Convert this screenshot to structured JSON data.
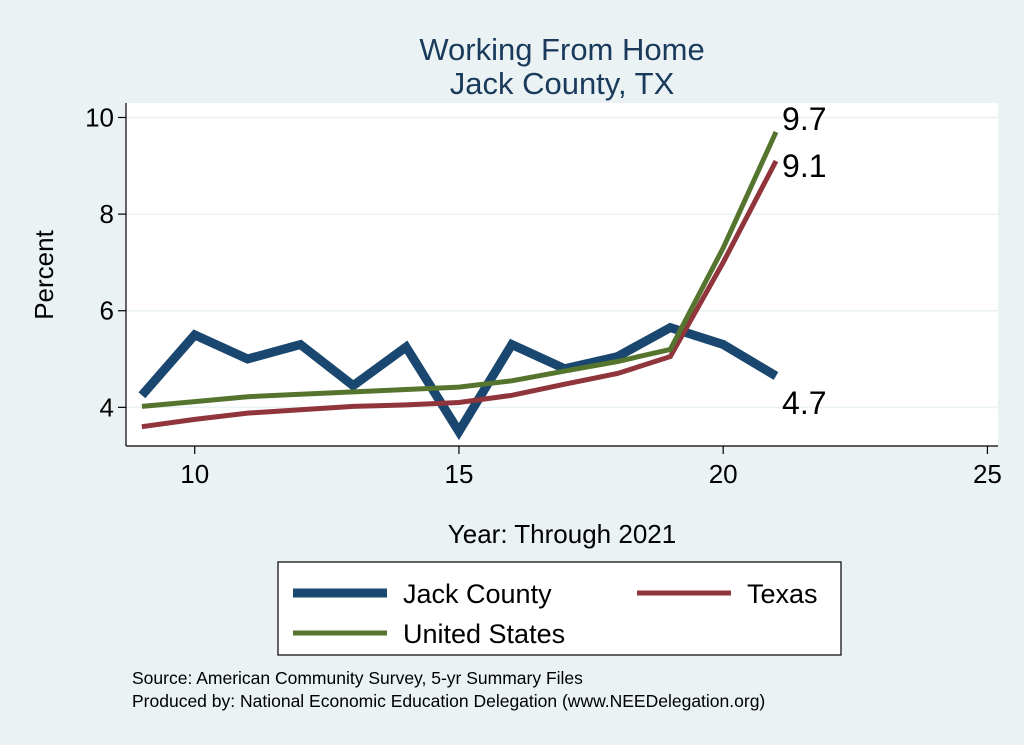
{
  "chart_data": {
    "type": "line",
    "title": [
      "Working From Home",
      "Jack County, TX"
    ],
    "xlabel": "Year: Through 2021",
    "ylabel": "Percent",
    "xlim": [
      8.7,
      25.2
    ],
    "ylim": [
      3.2,
      10.3
    ],
    "xticks": [
      10,
      15,
      20,
      25
    ],
    "yticks": [
      4,
      6,
      8,
      10
    ],
    "grid": "horizontal",
    "legend_position": "bottom",
    "series": [
      {
        "name": "Jack County",
        "color": "#1a476f",
        "x": [
          9,
          10,
          11,
          12,
          13,
          14,
          15,
          16,
          17,
          18,
          19,
          20,
          21
        ],
        "y": [
          4.25,
          5.5,
          5.0,
          5.3,
          4.45,
          5.25,
          3.5,
          5.3,
          4.8,
          5.05,
          5.65,
          5.3,
          4.65
        ],
        "end_label": "4.7"
      },
      {
        "name": "Texas",
        "color": "#90353b",
        "x": [
          9,
          10,
          11,
          12,
          13,
          14,
          15,
          16,
          17,
          18,
          19,
          20,
          21
        ],
        "y": [
          3.6,
          3.75,
          3.88,
          3.95,
          4.02,
          4.05,
          4.1,
          4.25,
          4.48,
          4.7,
          5.05,
          7.0,
          9.1
        ],
        "end_label": "9.1"
      },
      {
        "name": "United States",
        "color": "#55752f",
        "x": [
          9,
          10,
          11,
          12,
          13,
          14,
          15,
          16,
          17,
          18,
          19,
          20,
          21
        ],
        "y": [
          4.02,
          4.12,
          4.22,
          4.27,
          4.32,
          4.37,
          4.42,
          4.55,
          4.75,
          4.95,
          5.2,
          7.3,
          9.7
        ],
        "end_label": "9.7"
      }
    ],
    "legend_order": [
      "Jack County",
      "Texas",
      "United States"
    ],
    "notes": [
      "Source: American Community Survey, 5-yr Summary Files",
      "Produced by: National Economic Education Delegation (www.NEEDelegation.org)"
    ]
  }
}
